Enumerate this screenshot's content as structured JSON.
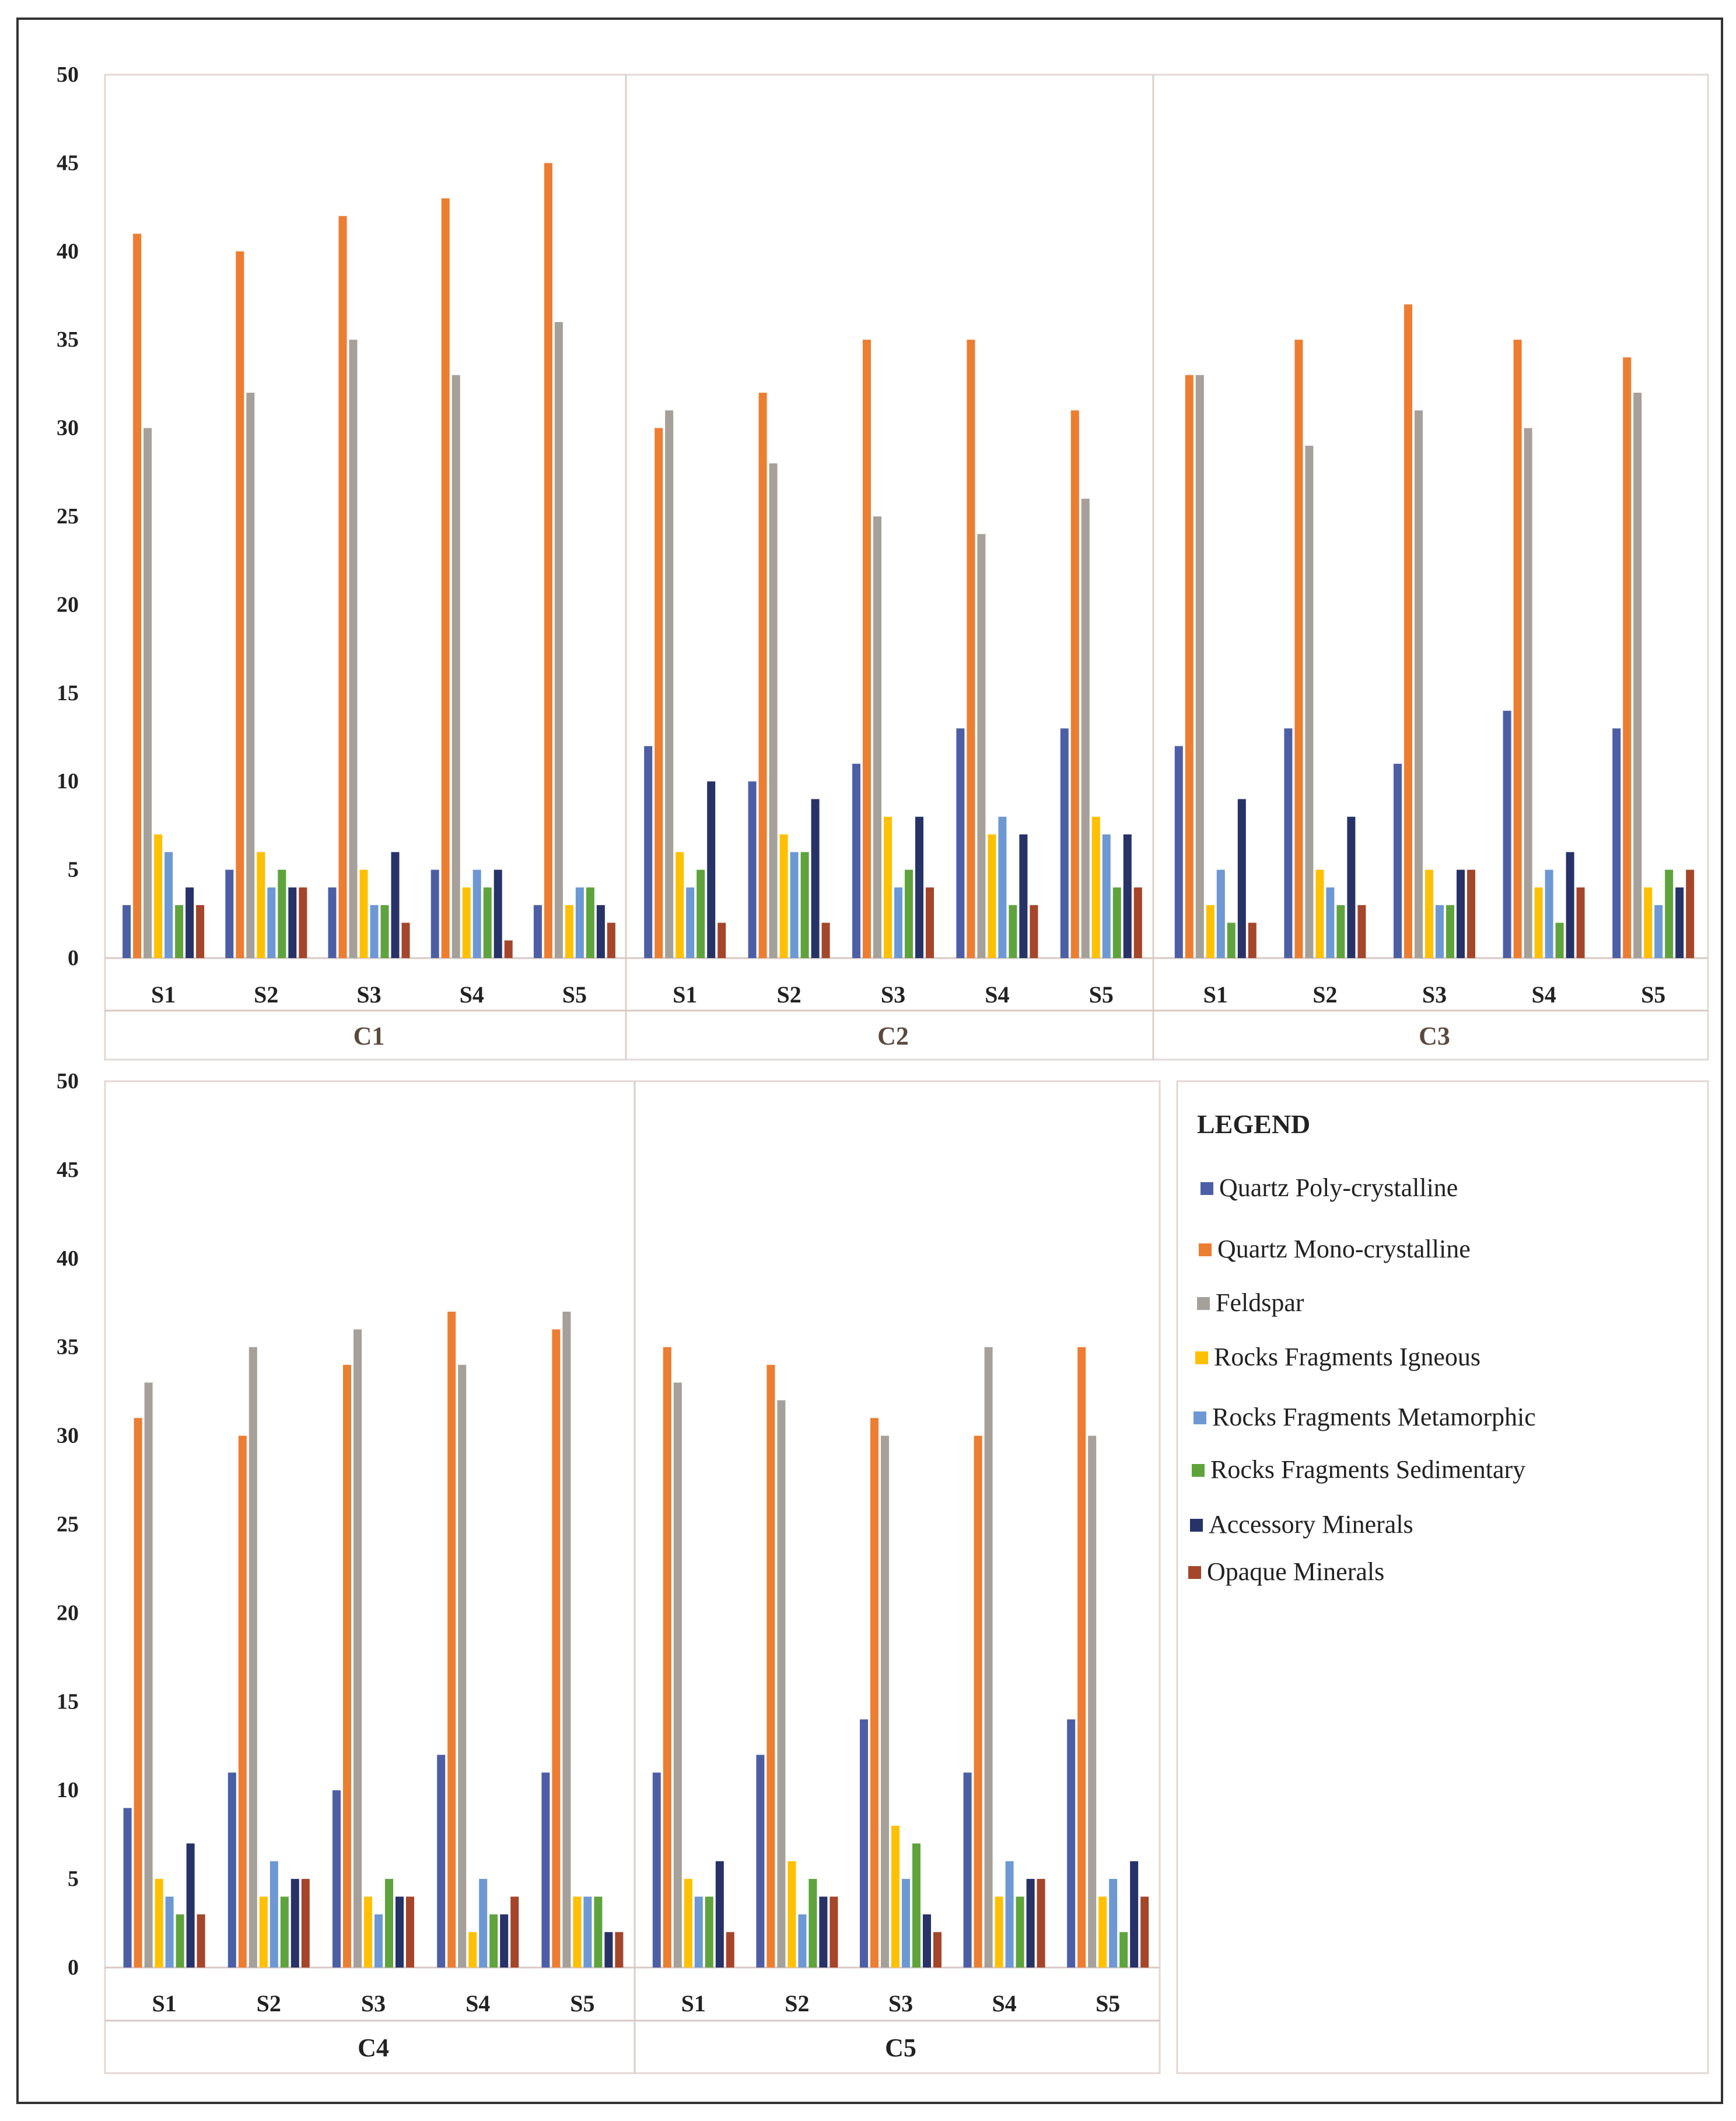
{
  "chart_data": {
    "type": "bar",
    "ylim": [
      0,
      50
    ],
    "yticks": [
      0,
      5,
      10,
      15,
      20,
      25,
      30,
      35,
      40,
      45,
      50
    ],
    "legend_title": "LEGEND",
    "legend_placement": "bottom-right",
    "series": [
      {
        "name": "Quartz Poly-crystalline",
        "color": "#4c5fa6"
      },
      {
        "name": "Quartz Mono-crystalline",
        "color": "#ed7d31"
      },
      {
        "name": "Feldspar",
        "color": "#a5a09a"
      },
      {
        "name": "Rocks Fragments Igneous",
        "color": "#ffc000"
      },
      {
        "name": "Rocks Fragments Metamorphic",
        "color": "#6d98d4"
      },
      {
        "name": "Rocks Fragments Sedimentary",
        "color": "#5fa33c"
      },
      {
        "name": "Accessory Minerals",
        "color": "#263268"
      },
      {
        "name": "Opaque Minerals",
        "color": "#a5452a"
      }
    ],
    "groups": [
      {
        "name": "C1",
        "samples": [
          {
            "label": "S1",
            "values": [
              3,
              41,
              30,
              7,
              6,
              3,
              4,
              3
            ]
          },
          {
            "label": "S2",
            "values": [
              5,
              40,
              32,
              6,
              4,
              5,
              4,
              4
            ]
          },
          {
            "label": "S3",
            "values": [
              4,
              42,
              35,
              5,
              3,
              3,
              6,
              2
            ]
          },
          {
            "label": "S4",
            "values": [
              5,
              43,
              33,
              4,
              5,
              4,
              5,
              1
            ]
          },
          {
            "label": "S5",
            "values": [
              3,
              45,
              36,
              3,
              4,
              4,
              3,
              2
            ]
          }
        ]
      },
      {
        "name": "C2",
        "samples": [
          {
            "label": "S1",
            "values": [
              12,
              30,
              31,
              6,
              4,
              5,
              10,
              2
            ]
          },
          {
            "label": "S2",
            "values": [
              10,
              32,
              28,
              7,
              6,
              6,
              9,
              2
            ]
          },
          {
            "label": "S3",
            "values": [
              11,
              35,
              25,
              8,
              4,
              5,
              8,
              4
            ]
          },
          {
            "label": "S4",
            "values": [
              13,
              35,
              24,
              7,
              8,
              3,
              7,
              3
            ]
          },
          {
            "label": "S5",
            "values": [
              13,
              31,
              26,
              8,
              7,
              4,
              7,
              4
            ]
          }
        ]
      },
      {
        "name": "C3",
        "samples": [
          {
            "label": "S1",
            "values": [
              12,
              33,
              33,
              3,
              5,
              2,
              9,
              2
            ]
          },
          {
            "label": "S2",
            "values": [
              13,
              35,
              29,
              5,
              4,
              3,
              8,
              3
            ]
          },
          {
            "label": "S3",
            "values": [
              11,
              37,
              31,
              5,
              3,
              3,
              5,
              5
            ]
          },
          {
            "label": "S4",
            "values": [
              14,
              35,
              30,
              4,
              5,
              2,
              6,
              4
            ]
          },
          {
            "label": "S5",
            "values": [
              13,
              34,
              32,
              4,
              3,
              5,
              4,
              5
            ]
          }
        ]
      },
      {
        "name": "C4",
        "samples": [
          {
            "label": "S1",
            "values": [
              9,
              31,
              33,
              5,
              4,
              3,
              7,
              3
            ]
          },
          {
            "label": "S2",
            "values": [
              11,
              30,
              35,
              4,
              6,
              4,
              5,
              5
            ]
          },
          {
            "label": "S3",
            "values": [
              10,
              34,
              36,
              4,
              3,
              5,
              4,
              4
            ]
          },
          {
            "label": "S4",
            "values": [
              12,
              37,
              34,
              2,
              5,
              3,
              3,
              4
            ]
          },
          {
            "label": "S5",
            "values": [
              11,
              36,
              37,
              4,
              4,
              4,
              2,
              2
            ]
          }
        ]
      },
      {
        "name": "C5",
        "samples": [
          {
            "label": "S1",
            "values": [
              11,
              35,
              33,
              5,
              4,
              4,
              6,
              2
            ]
          },
          {
            "label": "S2",
            "values": [
              12,
              34,
              32,
              6,
              3,
              5,
              4,
              4
            ]
          },
          {
            "label": "S3",
            "values": [
              14,
              31,
              30,
              8,
              5,
              7,
              3,
              2
            ]
          },
          {
            "label": "S4",
            "values": [
              11,
              30,
              35,
              4,
              6,
              4,
              5,
              5
            ]
          },
          {
            "label": "S5",
            "values": [
              14,
              35,
              30,
              4,
              5,
              2,
              6,
              4
            ]
          }
        ]
      }
    ]
  }
}
